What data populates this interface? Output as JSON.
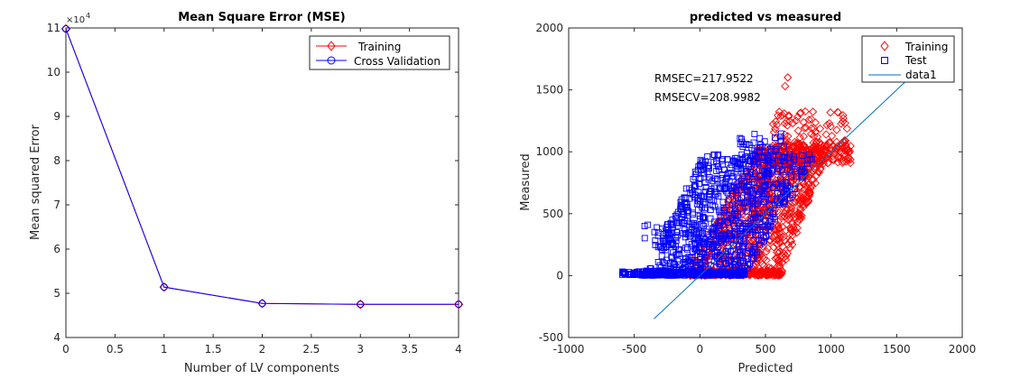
{
  "chart_data": [
    {
      "type": "line",
      "title": "Mean Square Error (MSE)",
      "xlabel": "Number of LV components",
      "ylabel": "Mean squared Error",
      "exponent_label": "×10",
      "exponent_power": "4",
      "xlim": [
        0,
        4
      ],
      "ylim": [
        4,
        11
      ],
      "xticks": [
        0,
        0.5,
        1,
        1.5,
        2,
        2.5,
        3,
        3.5,
        4
      ],
      "yticks": [
        4,
        5,
        6,
        7,
        8,
        9,
        10,
        11
      ],
      "xtick_labels": [
        "0",
        "0.5",
        "1",
        "1.5",
        "2",
        "2.5",
        "3",
        "3.5",
        "4"
      ],
      "ytick_labels": [
        "4",
        "5",
        "6",
        "7",
        "8",
        "9",
        "10",
        "11"
      ],
      "legend_position": "top-right",
      "x": [
        0,
        1,
        2,
        3,
        4
      ],
      "series": [
        {
          "name": "Training",
          "color": "#ff0000",
          "marker": "diamond",
          "values": [
            10.98,
            5.14,
            4.77,
            4.75,
            4.75
          ]
        },
        {
          "name": "Cross Validation",
          "color": "#0000ff",
          "marker": "circle",
          "values": [
            10.98,
            5.14,
            4.77,
            4.75,
            4.75
          ]
        }
      ]
    },
    {
      "type": "scatter",
      "title": "predicted vs measured",
      "xlabel": "Predicted",
      "ylabel": "Measured",
      "xlim": [
        -1000,
        2000
      ],
      "ylim": [
        -500,
        2000
      ],
      "xticks": [
        -1000,
        -500,
        0,
        500,
        1000,
        1500,
        2000
      ],
      "yticks": [
        -500,
        0,
        500,
        1000,
        1500,
        2000
      ],
      "xtick_labels": [
        "-1000",
        "-500",
        "0",
        "500",
        "1000",
        "1500",
        "2000"
      ],
      "ytick_labels": [
        "-500",
        "0",
        "500",
        "1000",
        "1500",
        "2000"
      ],
      "legend_position": "top-right",
      "annotations": [
        "RMSEC=217.9522",
        "RMSECV=208.9982"
      ],
      "series": [
        {
          "name": "Training",
          "color": "#ff0000",
          "marker": "diamond",
          "description": "dense cloud, predicted roughly 0 to 1150, measured roughly 0 to 1600"
        },
        {
          "name": "Test",
          "color": "#0000ff",
          "marker": "square",
          "description": "dense cloud, predicted roughly -600 to 1000, measured roughly 0 to 1150"
        },
        {
          "name": "data1",
          "color": "#0072bd",
          "marker": "line",
          "x": [
            -350,
            1750
          ],
          "y": [
            -350,
            1750
          ]
        }
      ]
    }
  ]
}
